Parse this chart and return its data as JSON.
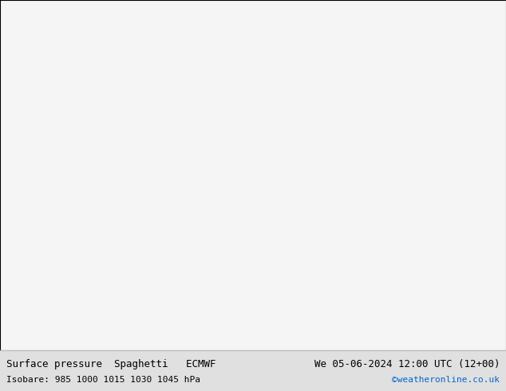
{
  "title_left": "Surface pressure  Spaghetti   ECMWF",
  "title_right": "We 05-06-2024 12:00 UTC (12+00)",
  "subtitle_left": "Isobare: 985 1000 1015 1030 1045 hPa",
  "subtitle_right": "©weatheronline.co.uk",
  "subtitle_right_color": "#0066cc",
  "text_color": "#000000",
  "font_size_title": 9,
  "font_size_subtitle": 8,
  "fig_width": 6.34,
  "fig_height": 4.9,
  "dpi": 100,
  "ocean_color": "#f5f5f5",
  "land_color_light": "#ccf0cc",
  "land_color_dark": "#aadaaa",
  "coastline_color": "#888888",
  "coastline_lw": 0.4,
  "border_color": "#aaaaaa",
  "border_lw": 0.3,
  "bottom_bar_color": "#e0e0e0",
  "map_extent": [
    85,
    175,
    -20,
    62
  ],
  "isobar_values": [
    985,
    1000,
    1015,
    1030,
    1045
  ],
  "n_ensemble": 51,
  "contour_lw": 0.5,
  "ensemble_colors": [
    "#ff0000",
    "#ff6600",
    "#ffcc00",
    "#00cc00",
    "#00cccc",
    "#0066ff",
    "#cc00cc",
    "#ff00ff",
    "#ff3366",
    "#00ff99",
    "#9933ff",
    "#ff9933",
    "#33ccff",
    "#cc3300",
    "#669900",
    "#0033cc",
    "#cc0099",
    "#ff6633",
    "#33cc00",
    "#9966ff",
    "#ff3300",
    "#ffaa00",
    "#00aa66",
    "#3399ff",
    "#cc66ff",
    "#aa0000",
    "#005500",
    "#000088",
    "#884400",
    "#006666",
    "#ff66aa",
    "#aaff00",
    "#00aaff",
    "#aa44ff",
    "#ff4400",
    "#44aa00",
    "#0044aa",
    "#aa0044",
    "#44aaaa",
    "#aaaa00",
    "#ff8844",
    "#88ff44",
    "#4488ff",
    "#ff44aa",
    "#44ffaa",
    "#888800",
    "#008888",
    "#880088",
    "#884488",
    "#448844",
    "#444488"
  ]
}
